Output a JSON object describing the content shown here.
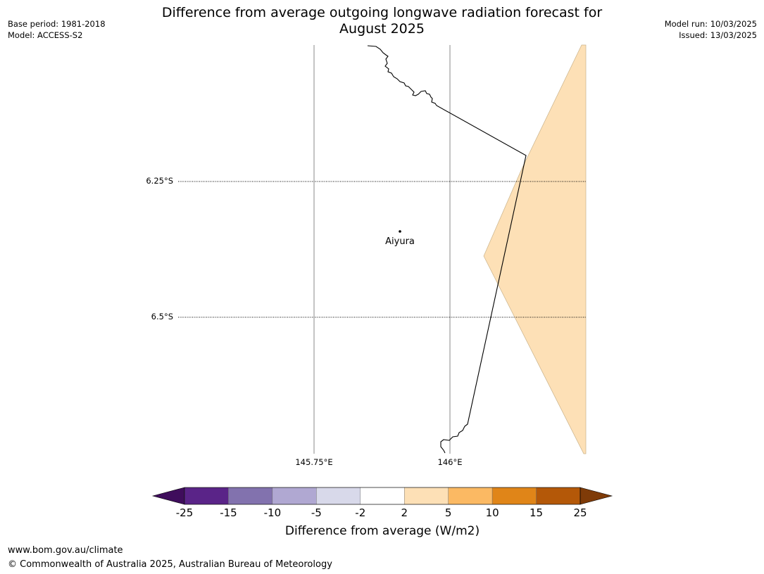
{
  "header": {
    "title_line1": "Difference from average outgoing longwave radiation forecast for",
    "title_line2": "August 2025",
    "base_period": "Base period: 1981-2018",
    "model": "Model: ACCESS-S2",
    "model_run": "Model run: 10/03/2025",
    "issued": "Issued: 13/03/2025"
  },
  "map": {
    "lat_labels": [
      "6.25°S",
      "6.5°S"
    ],
    "lon_labels": [
      "145.75°E",
      "146°E"
    ],
    "place": "Aiyura",
    "anomaly_fill_color": "#fde0b6"
  },
  "colorbar": {
    "tick_labels": [
      "-25",
      "-15",
      "-10",
      "-5",
      "-2",
      "2",
      "5",
      "10",
      "15",
      "25"
    ],
    "colors": [
      "#3f0d5c",
      "#5a2488",
      "#8272ae",
      "#b0a8d2",
      "#d8d9ea",
      "#ffffff",
      "#fde0b6",
      "#fbb963",
      "#e08518",
      "#b45808",
      "#7f3b08"
    ],
    "label": "Difference from average (W/m2)"
  },
  "footer": {
    "url": "www.bom.gov.au/climate",
    "copyright": "© Commonwealth of Australia 2025, Australian Bureau of Meteorology"
  }
}
